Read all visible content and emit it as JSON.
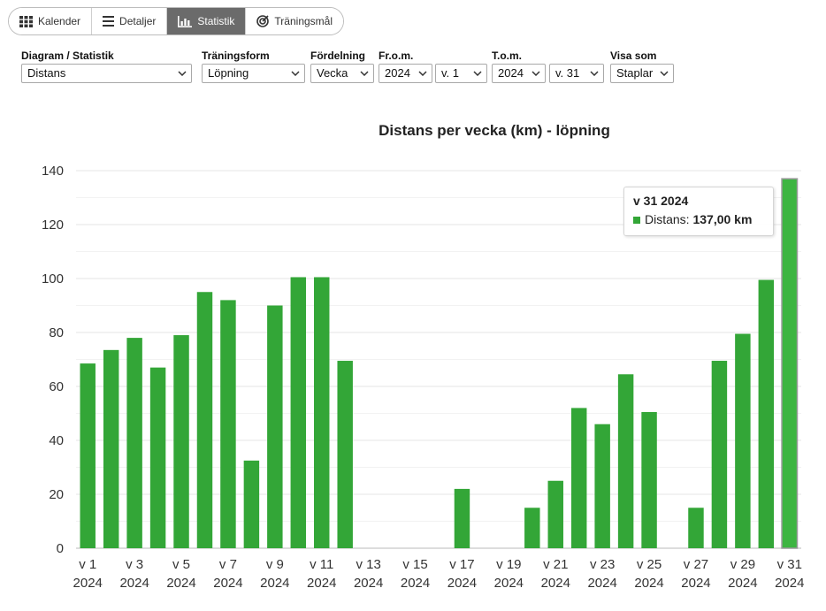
{
  "tabs": [
    {
      "label": "Kalender",
      "icon": "calendar-grid-icon",
      "active": false
    },
    {
      "label": "Detaljer",
      "icon": "list-icon",
      "active": false
    },
    {
      "label": "Statistik",
      "icon": "bar-chart-icon",
      "active": true
    },
    {
      "label": "Träningsmål",
      "icon": "target-icon",
      "active": false
    }
  ],
  "filters": {
    "diagram": {
      "label": "Diagram / Statistik",
      "value": "Distans"
    },
    "form": {
      "label": "Träningsform",
      "value": "Löpning"
    },
    "distribution": {
      "label": "Fördelning",
      "value": "Vecka"
    },
    "from": {
      "label": "Fr.o.m.",
      "year": "2024",
      "week": "v. 1"
    },
    "to": {
      "label": "T.o.m.",
      "year": "2024",
      "week": "v. 31"
    },
    "display": {
      "label": "Visa som",
      "value": "Staplar"
    }
  },
  "tooltip": {
    "title": "v 31 2024",
    "series_label": "Distans:",
    "value_text": "137,00 km"
  },
  "colors": {
    "bar": "#33a637",
    "bar_highlight": "#3db541",
    "grid": "#e6e6e6"
  },
  "chart_data": {
    "type": "bar",
    "title": "Distans per vecka (km) - löpning",
    "xlabel": "",
    "ylabel": "",
    "ylim": [
      0,
      140
    ],
    "yticks": [
      0,
      20,
      40,
      60,
      80,
      100,
      120,
      140
    ],
    "categories": [
      "v 1",
      "v 2",
      "v 3",
      "v 4",
      "v 5",
      "v 6",
      "v 7",
      "v 8",
      "v 9",
      "v 10",
      "v 11",
      "v 12",
      "v 13",
      "v 14",
      "v 15",
      "v 16",
      "v 17",
      "v 18",
      "v 19",
      "v 20",
      "v 21",
      "v 22",
      "v 23",
      "v 24",
      "v 25",
      "v 26",
      "v 27",
      "v 28",
      "v 29",
      "v 30",
      "v 31"
    ],
    "category_year": "2024",
    "label_every": 2,
    "values": [
      68.5,
      73.5,
      78,
      67,
      79,
      95,
      92,
      32.5,
      90,
      100.5,
      100.5,
      69.5,
      0,
      0,
      0,
      0,
      22,
      0,
      0,
      15,
      25,
      52,
      46,
      64.5,
      50.5,
      0,
      15,
      69.5,
      79.5,
      99.5,
      137
    ],
    "highlighted_index": 30,
    "legend": "none",
    "grid": true
  }
}
